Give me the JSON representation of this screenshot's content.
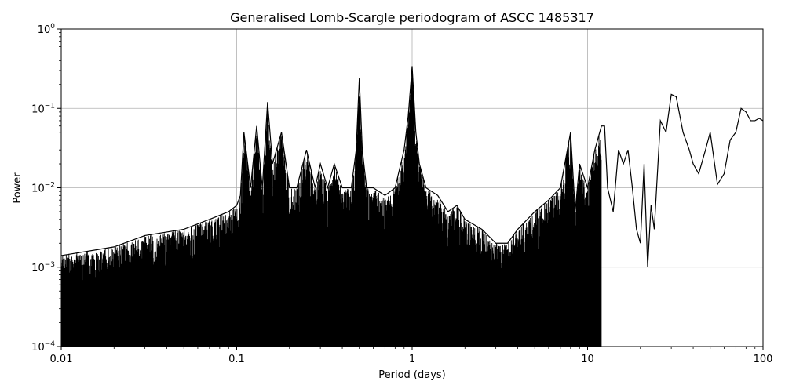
{
  "chart_data": {
    "type": "line",
    "title": "Generalised Lomb-Scargle periodogram of ASCC 1485317",
    "xlabel": "Period (days)",
    "ylabel": "Power",
    "xscale": "log",
    "yscale": "log",
    "xlim": [
      0.01,
      100
    ],
    "ylim": [
      0.0001,
      1
    ],
    "grid": true,
    "colors": {
      "line": "#000000",
      "grid": "#b0b0b0",
      "axes": "#000000"
    },
    "x_ticks": [
      {
        "value": 0.01,
        "label": "0.01"
      },
      {
        "value": 0.1,
        "label": "0.1"
      },
      {
        "value": 1,
        "label": "1"
      },
      {
        "value": 10,
        "label": "10"
      },
      {
        "value": 100,
        "label": "100"
      }
    ],
    "y_ticks": [
      {
        "value": 0.0001,
        "base": "10",
        "exp": "−4"
      },
      {
        "value": 0.001,
        "base": "10",
        "exp": "−3"
      },
      {
        "value": 0.01,
        "base": "10",
        "exp": "−2"
      },
      {
        "value": 0.1,
        "base": "10",
        "exp": "−1"
      },
      {
        "value": 1,
        "base": "10",
        "exp": "0"
      }
    ],
    "series": [
      {
        "style": "line",
        "x": [
          0.01,
          0.02,
          0.03,
          0.05,
          0.07,
          0.09,
          0.1,
          0.105,
          0.11,
          0.12,
          0.13,
          0.14,
          0.15,
          0.16,
          0.18,
          0.2,
          0.22,
          0.25,
          0.28,
          0.3,
          0.33,
          0.36,
          0.4,
          0.45,
          0.48,
          0.5,
          0.52,
          0.55,
          0.6,
          0.7,
          0.8,
          0.9,
          0.95,
          1.0,
          1.05,
          1.1,
          1.2,
          1.4,
          1.6,
          1.8,
          2.0,
          2.5,
          3.0,
          3.5,
          4.0,
          5.0,
          6.0,
          7.0,
          8.0,
          8.5,
          9.0,
          10.0,
          11.0,
          12.0,
          12.5,
          13.0,
          14.0,
          15.0,
          16.0,
          17.0,
          18.0,
          19.0,
          20.0,
          21.0,
          22.0,
          23.0,
          24.0,
          26.0,
          28.0,
          30.0,
          32.0,
          35.0,
          38.0,
          40.0,
          43.0,
          47.0,
          50.0,
          55.0,
          60.0,
          65.0,
          70.0,
          75.0,
          80.0,
          85.0,
          90.0,
          95.0,
          100.0
        ],
        "y": [
          0.0014,
          0.0018,
          0.0025,
          0.003,
          0.004,
          0.005,
          0.006,
          0.008,
          0.05,
          0.01,
          0.06,
          0.01,
          0.12,
          0.02,
          0.05,
          0.01,
          0.01,
          0.03,
          0.01,
          0.02,
          0.01,
          0.02,
          0.01,
          0.01,
          0.03,
          0.24,
          0.03,
          0.01,
          0.01,
          0.008,
          0.01,
          0.03,
          0.08,
          0.34,
          0.05,
          0.02,
          0.01,
          0.008,
          0.005,
          0.006,
          0.004,
          0.003,
          0.002,
          0.002,
          0.003,
          0.005,
          0.007,
          0.01,
          0.05,
          0.005,
          0.02,
          0.01,
          0.03,
          0.06,
          0.06,
          0.01,
          0.005,
          0.03,
          0.02,
          0.03,
          0.01,
          0.003,
          0.002,
          0.02,
          0.001,
          0.006,
          0.003,
          0.07,
          0.05,
          0.15,
          0.14,
          0.05,
          0.03,
          0.02,
          0.015,
          0.03,
          0.05,
          0.011,
          0.015,
          0.04,
          0.05,
          0.1,
          0.09,
          0.07,
          0.07,
          0.075,
          0.07
        ]
      }
    ]
  }
}
